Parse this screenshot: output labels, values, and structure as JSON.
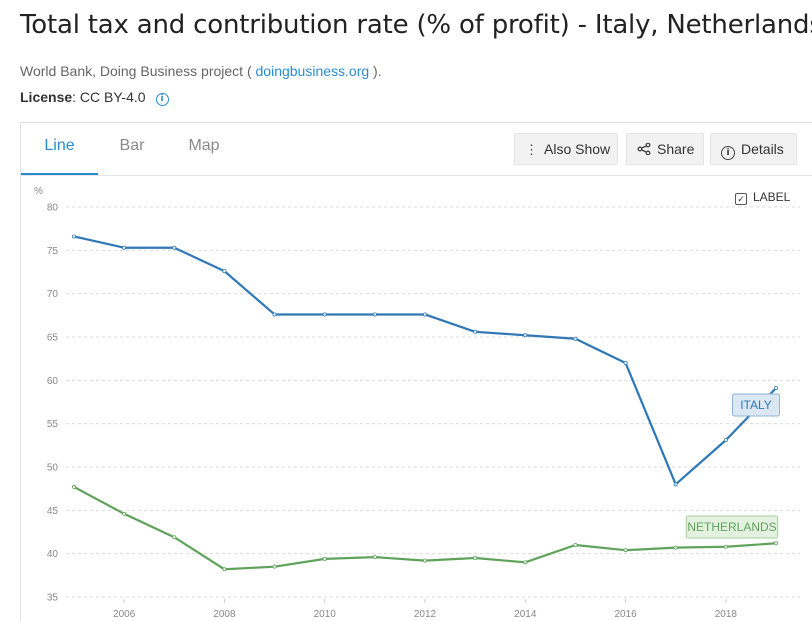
{
  "title": "Total tax and contribution rate (% of profit) - Italy, Netherlands",
  "source": {
    "prefix": "World Bank, Doing Business project (",
    "link": "doingbusiness.org",
    "suffix": ")."
  },
  "license": {
    "label": "License",
    "value": ": CC BY-4.0"
  },
  "tabs": [
    "Line",
    "Bar",
    "Map"
  ],
  "buttons": {
    "also_show": "Also Show",
    "share": "Share",
    "details": "Details"
  },
  "label_toggle": "LABEL",
  "chart_data": {
    "type": "line",
    "ylabel": "%",
    "ylim": [
      35,
      80
    ],
    "yticks": [
      35,
      40,
      45,
      50,
      55,
      60,
      65,
      70,
      75,
      80
    ],
    "xlim": [
      2005,
      2019
    ],
    "xticks": [
      2006,
      2008,
      2010,
      2012,
      2014,
      2016,
      2018
    ],
    "x": [
      2005,
      2006,
      2007,
      2008,
      2009,
      2010,
      2011,
      2012,
      2013,
      2014,
      2015,
      2016,
      2017,
      2018,
      2019
    ],
    "series": [
      {
        "name": "ITALY",
        "color": "#2e78b7",
        "values": [
          76.6,
          75.3,
          75.3,
          72.6,
          67.6,
          67.6,
          67.6,
          67.6,
          65.6,
          65.2,
          64.8,
          62.0,
          48.0,
          53.1,
          59.1
        ]
      },
      {
        "name": "NETHERLANDS",
        "color": "#5fa35a",
        "values": [
          47.7,
          44.6,
          41.9,
          38.2,
          38.5,
          39.4,
          39.6,
          39.2,
          39.5,
          39.0,
          41.0,
          40.4,
          40.7,
          40.8,
          41.2
        ]
      }
    ],
    "grid": true,
    "legend": "end-of-line labels"
  }
}
